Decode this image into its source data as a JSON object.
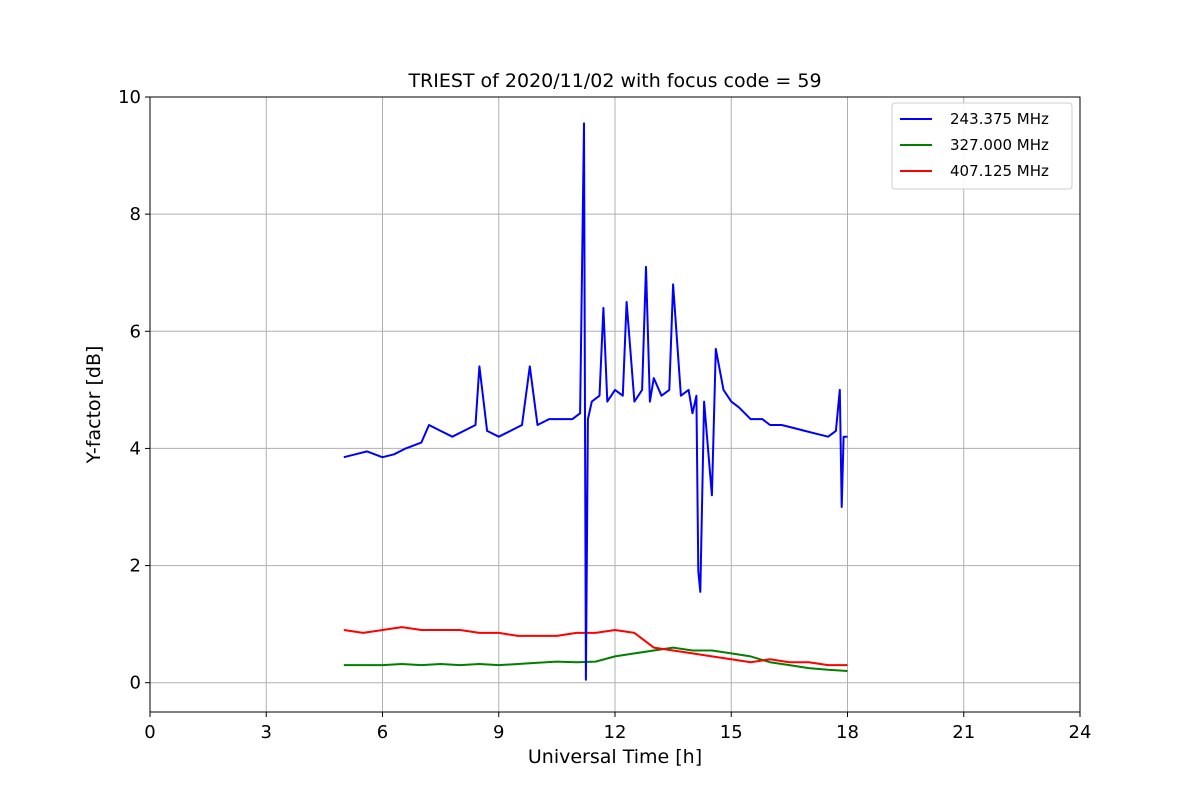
{
  "chart_data": {
    "type": "line",
    "title": "TRIEST of 2020/11/02 with focus code = 59",
    "xlabel": "Universal Time [h]",
    "ylabel": "Y-factor [dB]",
    "xlim": [
      0,
      24
    ],
    "ylim": [
      -0.5,
      10
    ],
    "xticks": [
      0,
      3,
      6,
      9,
      12,
      15,
      18,
      21,
      24
    ],
    "yticks": [
      0,
      2,
      4,
      6,
      8,
      10
    ],
    "grid": true,
    "legend_position": "top-right",
    "series": [
      {
        "name": "243.375 MHz",
        "color": "#0000ff",
        "x": [
          5.0,
          5.3,
          5.6,
          6.0,
          6.3,
          6.6,
          7.0,
          7.2,
          7.5,
          7.8,
          8.1,
          8.4,
          8.5,
          8.7,
          9.0,
          9.3,
          9.6,
          9.8,
          10.0,
          10.3,
          10.6,
          10.9,
          11.1,
          11.2,
          11.25,
          11.3,
          11.4,
          11.6,
          11.7,
          11.8,
          12.0,
          12.2,
          12.3,
          12.5,
          12.7,
          12.8,
          12.9,
          13.0,
          13.2,
          13.4,
          13.5,
          13.7,
          13.9,
          14.0,
          14.1,
          14.15,
          14.2,
          14.3,
          14.4,
          14.5,
          14.6,
          14.8,
          15.0,
          15.2,
          15.5,
          15.8,
          16.0,
          16.3,
          16.6,
          16.9,
          17.2,
          17.5,
          17.7,
          17.8,
          17.85,
          17.9,
          18.0
        ],
        "y": [
          3.85,
          3.9,
          3.95,
          3.85,
          3.9,
          4.0,
          4.1,
          4.4,
          4.3,
          4.2,
          4.3,
          4.4,
          5.4,
          4.3,
          4.2,
          4.3,
          4.4,
          5.4,
          4.4,
          4.5,
          4.5,
          4.5,
          4.6,
          9.55,
          0.05,
          4.5,
          4.8,
          4.9,
          6.4,
          4.8,
          5.0,
          4.9,
          6.5,
          4.8,
          5.0,
          7.1,
          4.8,
          5.2,
          4.9,
          5.0,
          6.8,
          4.9,
          5.0,
          4.6,
          4.9,
          1.9,
          1.55,
          4.8,
          4.0,
          3.2,
          5.7,
          5.0,
          4.8,
          4.7,
          4.5,
          4.5,
          4.4,
          4.4,
          4.35,
          4.3,
          4.25,
          4.2,
          4.3,
          5.0,
          3.0,
          4.2,
          4.2
        ]
      },
      {
        "name": "327.000 MHz",
        "color": "#008000",
        "x": [
          5.0,
          5.5,
          6.0,
          6.5,
          7.0,
          7.5,
          8.0,
          8.5,
          9.0,
          9.5,
          10.0,
          10.5,
          11.0,
          11.5,
          12.0,
          12.5,
          13.0,
          13.5,
          14.0,
          14.5,
          15.0,
          15.5,
          16.0,
          16.5,
          17.0,
          17.5,
          18.0
        ],
        "y": [
          0.3,
          0.3,
          0.3,
          0.32,
          0.3,
          0.32,
          0.3,
          0.32,
          0.3,
          0.32,
          0.34,
          0.36,
          0.35,
          0.36,
          0.45,
          0.5,
          0.55,
          0.6,
          0.55,
          0.55,
          0.5,
          0.45,
          0.35,
          0.3,
          0.25,
          0.22,
          0.2
        ]
      },
      {
        "name": "407.125 MHz",
        "color": "#ff0000",
        "x": [
          5.0,
          5.5,
          6.0,
          6.5,
          7.0,
          7.5,
          8.0,
          8.5,
          9.0,
          9.5,
          10.0,
          10.5,
          11.0,
          11.5,
          12.0,
          12.5,
          13.0,
          13.5,
          14.0,
          14.5,
          15.0,
          15.5,
          16.0,
          16.5,
          17.0,
          17.5,
          18.0
        ],
        "y": [
          0.9,
          0.85,
          0.9,
          0.95,
          0.9,
          0.9,
          0.9,
          0.85,
          0.85,
          0.8,
          0.8,
          0.8,
          0.85,
          0.85,
          0.9,
          0.85,
          0.6,
          0.55,
          0.5,
          0.45,
          0.4,
          0.35,
          0.4,
          0.35,
          0.35,
          0.3,
          0.3
        ]
      }
    ]
  }
}
